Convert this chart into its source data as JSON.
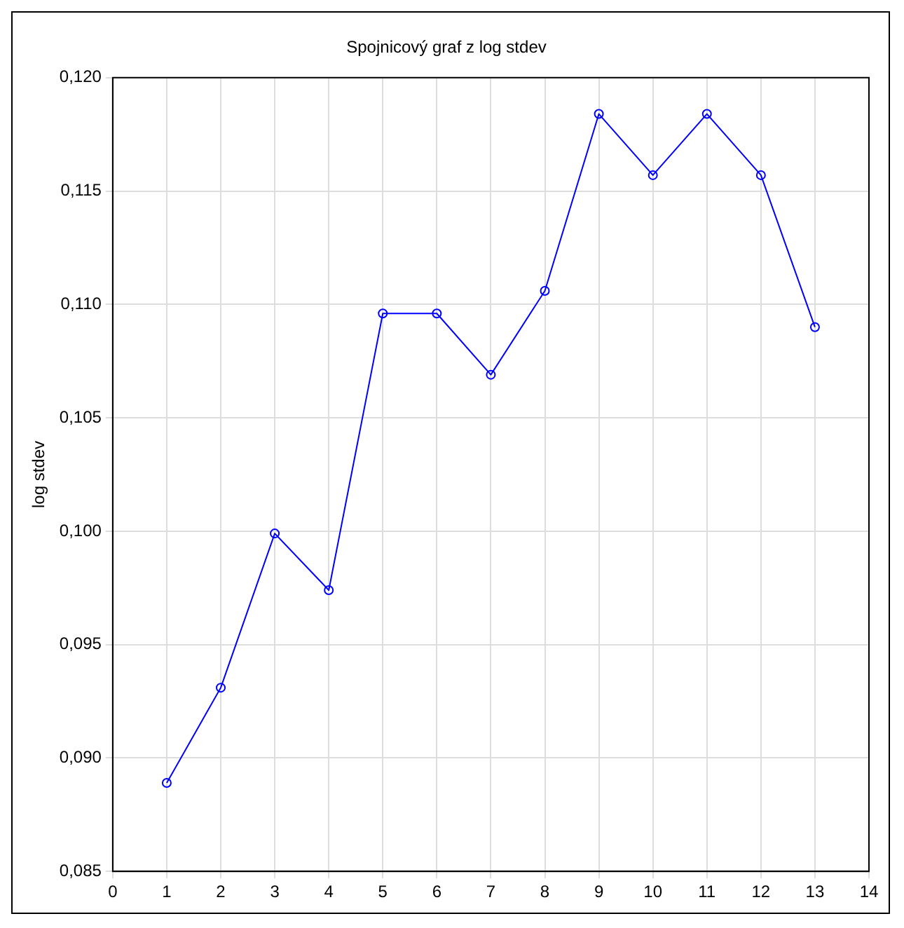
{
  "chart_data": {
    "type": "line",
    "title": "Spojnicový graf z log stdev",
    "ylabel": "log stdev",
    "x": [
      1,
      2,
      3,
      4,
      5,
      6,
      7,
      8,
      9,
      10,
      11,
      12,
      13
    ],
    "series": [
      {
        "color": "#0000ff",
        "values": [
          0.0889,
          0.0931,
          0.0999,
          0.0974,
          0.1096,
          0.1096,
          0.1069,
          0.1106,
          0.1184,
          0.1157,
          0.1184,
          0.1157,
          0.109
        ]
      }
    ],
    "xlim": [
      0,
      14
    ],
    "xticks": [
      0,
      1,
      2,
      3,
      4,
      5,
      6,
      7,
      8,
      9,
      10,
      11,
      12,
      13,
      14
    ],
    "ylim": [
      0.085,
      0.12
    ],
    "yticks": [
      {
        "value": 0.085,
        "label": "0,085"
      },
      {
        "value": 0.09,
        "label": "0,090"
      },
      {
        "value": 0.095,
        "label": "0,095"
      },
      {
        "value": 0.1,
        "label": "0,100"
      },
      {
        "value": 0.105,
        "label": "0,105"
      },
      {
        "value": 0.11,
        "label": "0,110"
      },
      {
        "value": 0.115,
        "label": "0,115"
      },
      {
        "value": 0.12,
        "label": "0,120"
      }
    ],
    "grid": true,
    "marker": "circle",
    "line_style": "solid",
    "legend": false
  }
}
